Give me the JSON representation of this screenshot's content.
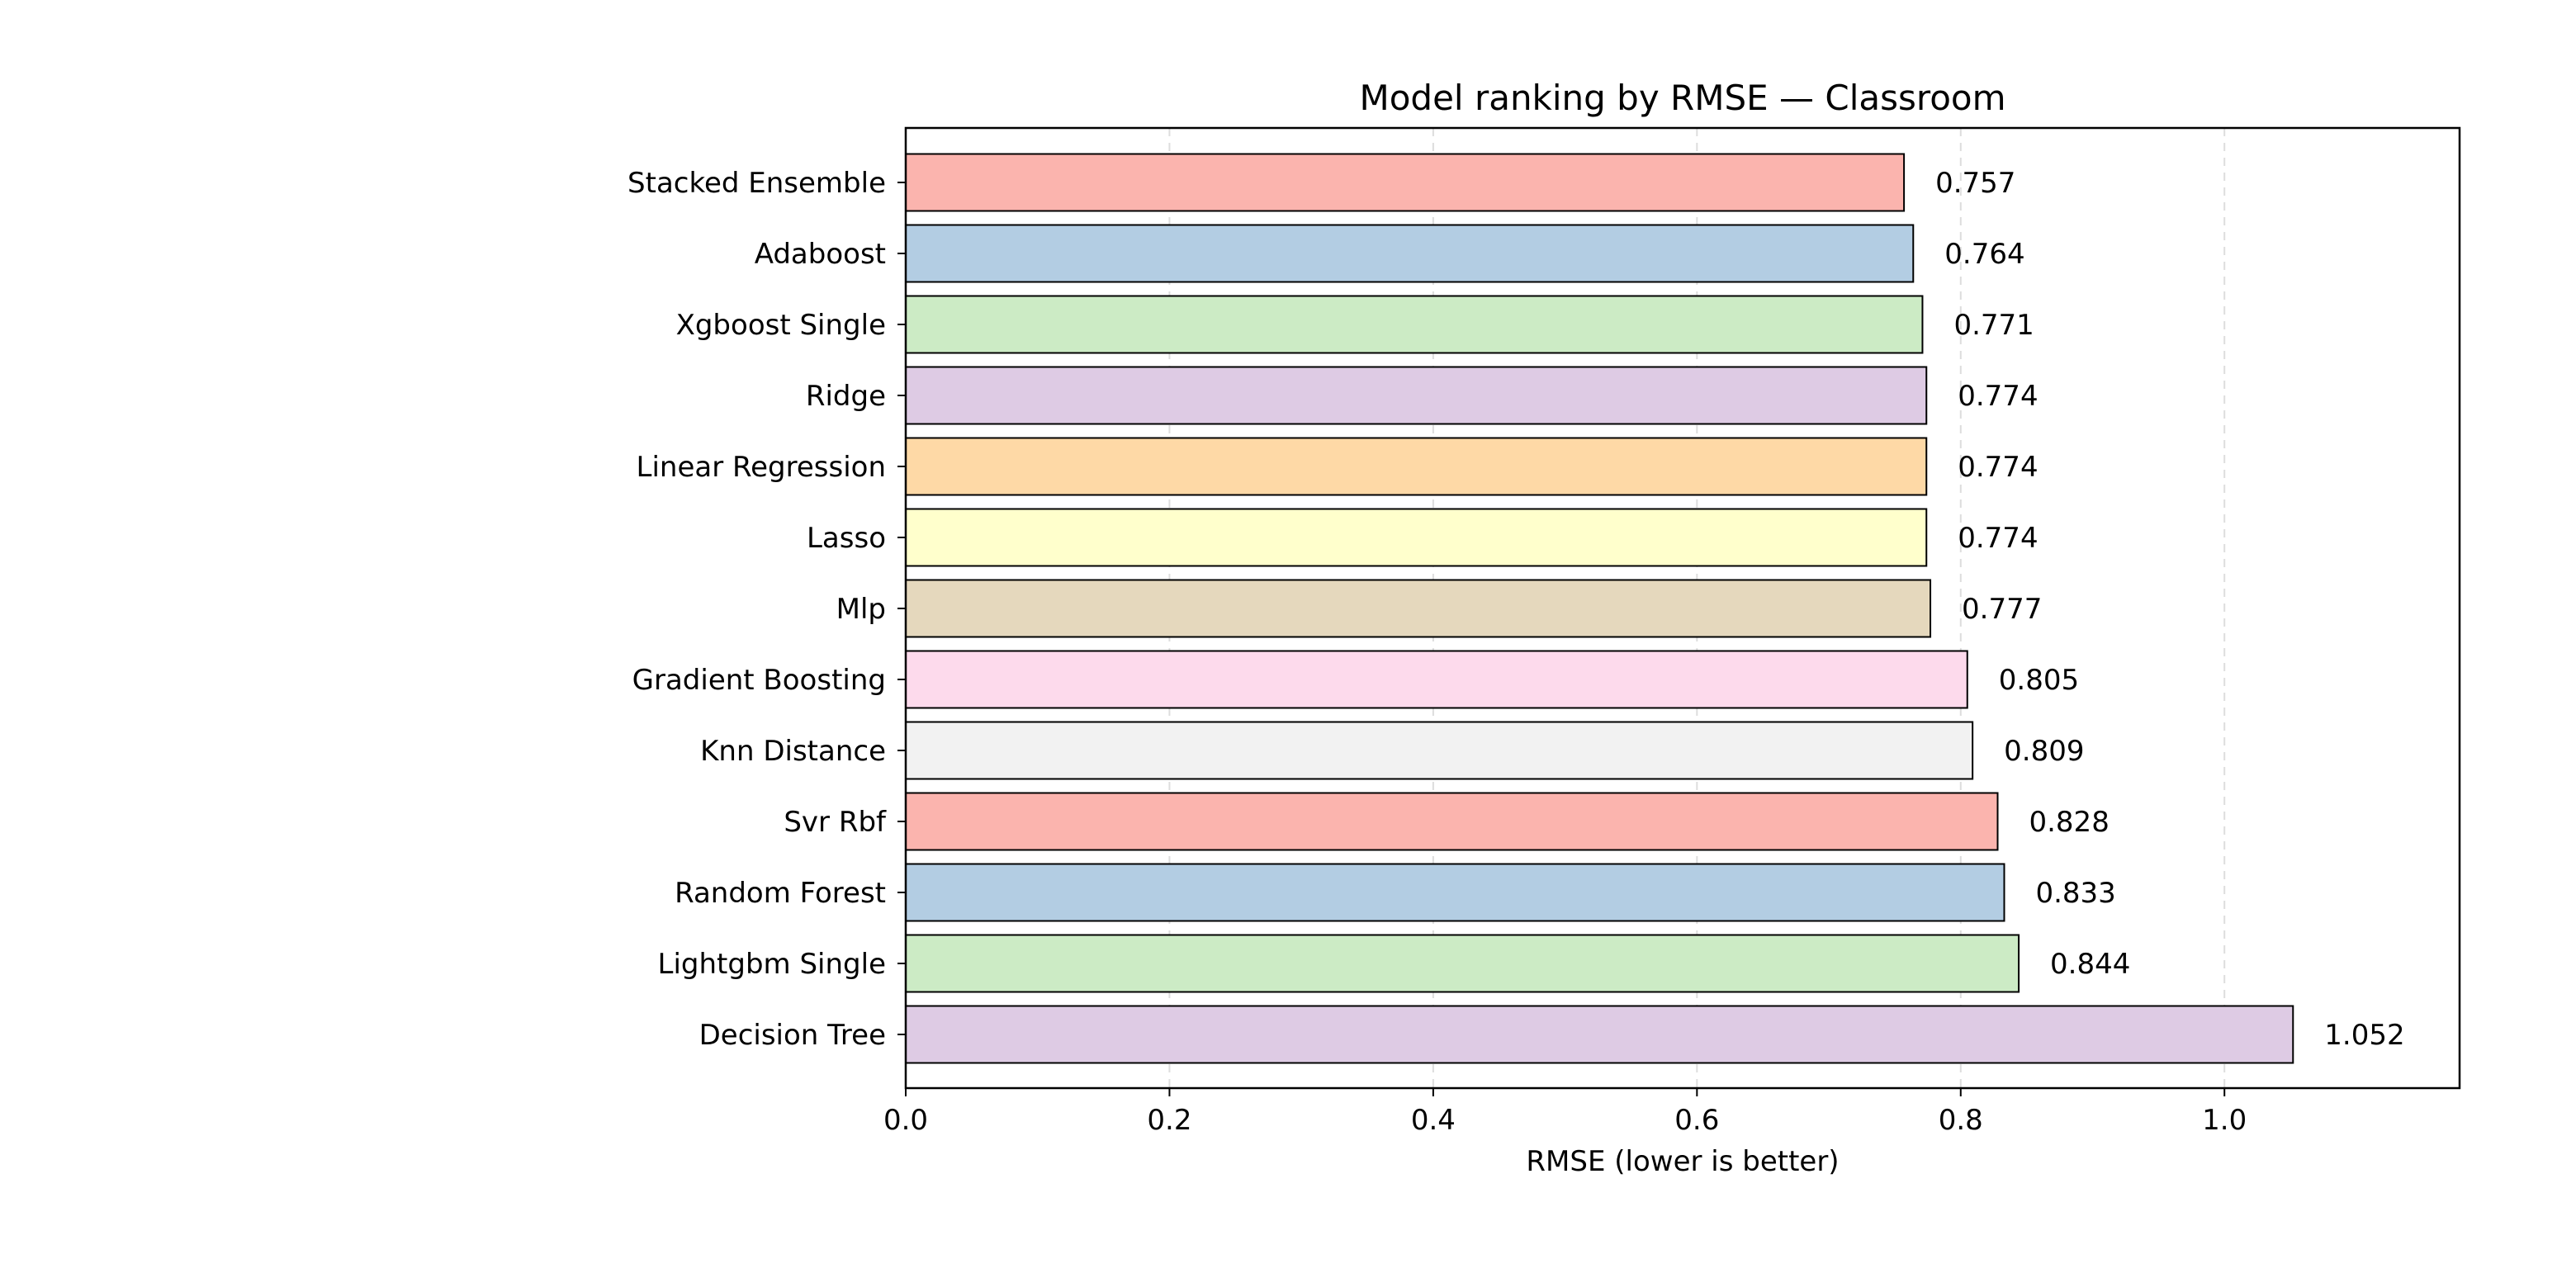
{
  "chart_data": {
    "type": "bar",
    "orientation": "horizontal",
    "title": "Model ranking by RMSE — Classroom",
    "xlabel": "RMSE (lower is better)",
    "ylabel": "",
    "xlim": [
      0.0,
      1.1783
    ],
    "xticks": [
      0.0,
      0.2,
      0.4,
      0.6,
      0.8,
      1.0
    ],
    "xtick_labels": [
      "0.0",
      "0.2",
      "0.4",
      "0.6",
      "0.8",
      "1.0"
    ],
    "grid": "x-axis dashed, light",
    "legend": "none",
    "categories": [
      "Stacked Ensemble",
      "Adaboost",
      "Xgboost Single",
      "Ridge",
      "Linear Regression",
      "Lasso",
      "Mlp",
      "Gradient Boosting",
      "Knn Distance",
      "Svr Rbf",
      "Random Forest",
      "Lightgbm Single",
      "Decision Tree"
    ],
    "values": [
      0.757,
      0.764,
      0.771,
      0.774,
      0.774,
      0.774,
      0.777,
      0.805,
      0.809,
      0.828,
      0.833,
      0.844,
      1.052
    ],
    "value_labels": [
      "0.757",
      "0.764",
      "0.771",
      "0.774",
      "0.774",
      "0.774",
      "0.777",
      "0.805",
      "0.809",
      "0.828",
      "0.833",
      "0.844",
      "1.052"
    ],
    "colors": [
      "#fbb4ae",
      "#b3cde3",
      "#ccebc5",
      "#decbe4",
      "#fed9a6",
      "#ffffcc",
      "#e5d8bd",
      "#fddaec",
      "#f2f2f2",
      "#fbb4ae",
      "#b3cde3",
      "#ccebc5",
      "#decbe4"
    ],
    "edge_color": "#000000",
    "grid_color": "#dddddd"
  }
}
